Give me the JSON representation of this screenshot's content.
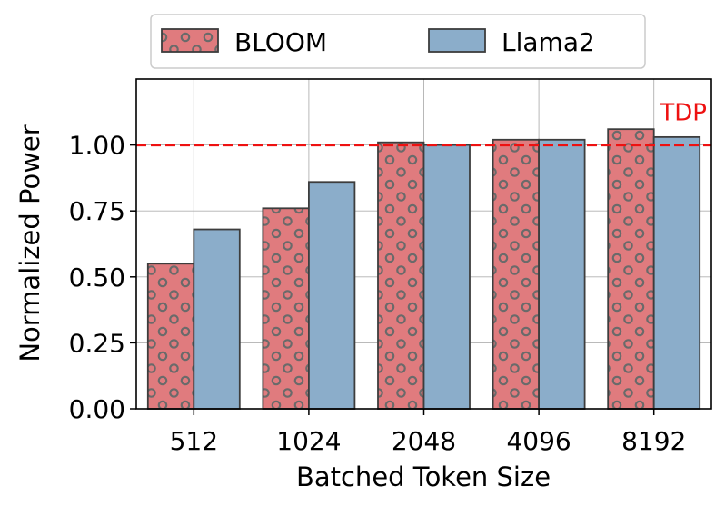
{
  "chart_data": {
    "type": "bar",
    "title": "",
    "xlabel": "Batched Token Size",
    "ylabel": "Normalized Power",
    "categories": [
      "512",
      "1024",
      "2048",
      "4096",
      "8192"
    ],
    "series": [
      {
        "name": "BLOOM",
        "values": [
          0.55,
          0.76,
          1.01,
          1.02,
          1.06
        ],
        "color": "#e07b7e",
        "hatch": "circles"
      },
      {
        "name": "Llama2",
        "values": [
          0.68,
          0.86,
          1.0,
          1.02,
          1.03
        ],
        "color": "#8badca",
        "hatch": "none"
      }
    ],
    "ylim": [
      0,
      1.25
    ],
    "yticks": [
      "0.00",
      "0.25",
      "0.50",
      "0.75",
      "1.00"
    ],
    "grid": true,
    "legend_position": "top-center",
    "reference_line": {
      "value": 1.0,
      "label": "TDP",
      "color": "#ee1111",
      "style": "dashed"
    }
  }
}
